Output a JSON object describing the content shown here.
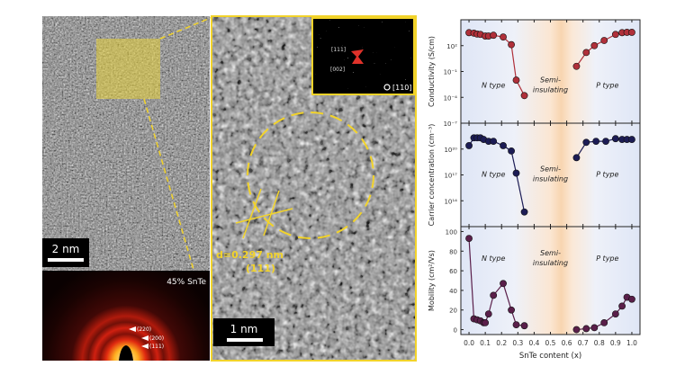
{
  "hrtem_left": {
    "scale_bar": "2 nm"
  },
  "diffraction": {
    "label": "45% SnTe",
    "rings": [
      "(220)",
      "(200)",
      "(111)"
    ]
  },
  "hrtem_middle": {
    "d_spacing": "d=0.297 nm",
    "plane": "(111)",
    "scale_bar": "1 nm"
  },
  "fft_inset": {
    "labels": [
      "[111]",
      "[002]"
    ],
    "zone_axis": "[110]"
  },
  "colors": {
    "annotation_yellow": "#f2d32a",
    "conductivity": "#b0303a",
    "carrier": "#1c1c55",
    "mobility": "#5a1f4a",
    "semi_band": "#f7c58f",
    "region_tint": "#dfe6f6"
  },
  "chart_data": [
    {
      "type": "line",
      "ylabel": "Conductivity (S/cm)",
      "yscale": "log",
      "ylim": [
        1e-07,
        100000.0
      ],
      "yticks": [
        {
          "v": 100.0,
          "label": "10²"
        },
        {
          "v": 0.1,
          "label": "10⁻¹"
        },
        {
          "v": 0.0001,
          "label": "10⁻⁴"
        },
        {
          "v": 1e-07,
          "label": "10⁻⁷"
        }
      ],
      "regions": [
        "N type",
        "Semi-",
        "insulating",
        "P type"
      ],
      "x": [
        0.0,
        0.03,
        0.05,
        0.07,
        0.1,
        0.12,
        0.15,
        0.21,
        0.26,
        0.29,
        0.34,
        0.66,
        0.72,
        0.77,
        0.83,
        0.9,
        0.94,
        0.97,
        1.0
      ],
      "segments": [
        [
          0,
          11
        ],
        [
          11,
          19
        ]
      ],
      "y": [
        3200,
        2800,
        2200,
        2000,
        1300,
        1300,
        1600,
        1000,
        130,
        0.01,
        0.00016,
        0.4,
        16,
        100,
        400,
        2000,
        3200,
        3500,
        3500
      ]
    },
    {
      "type": "line",
      "ylabel": "Carrier concentration (cm⁻³)",
      "yscale": "log",
      "ylim": [
        100000000000.0,
        1e+23
      ],
      "yticks": [
        {
          "v": 1e+20,
          "label": "10²⁰"
        },
        {
          "v": 1e+17,
          "label": "10¹⁷"
        },
        {
          "v": 100000000000000.0,
          "label": "10¹⁴"
        }
      ],
      "regions": [
        "N type",
        "Semi-",
        "insulating",
        "P type"
      ],
      "x": [
        0.0,
        0.03,
        0.05,
        0.07,
        0.09,
        0.12,
        0.15,
        0.21,
        0.26,
        0.29,
        0.34,
        0.66,
        0.72,
        0.78,
        0.84,
        0.9,
        0.94,
        0.97,
        1.0
      ],
      "segments": [
        [
          0,
          11
        ],
        [
          11,
          19
        ]
      ],
      "y": [
        2.5e+20,
        2e+21,
        2e+21,
        2e+21,
        1.3e+21,
        8e+20,
        8e+20,
        2.5e+20,
        6e+19,
        1.6e+17,
        5000000000000.0,
        1e+19,
        6e+20,
        8e+20,
        8e+20,
        1.6e+21,
        1.3e+21,
        1.3e+21,
        1.3e+21
      ]
    },
    {
      "type": "line",
      "ylabel": "Mobility (cm²/Vs)",
      "xlabel": "SnTe content (x)",
      "ylim": [
        -5,
        105
      ],
      "yticks": [
        {
          "v": 100,
          "label": "100"
        },
        {
          "v": 80,
          "label": "80"
        },
        {
          "v": 60,
          "label": "60"
        },
        {
          "v": 40,
          "label": "40"
        },
        {
          "v": 20,
          "label": "20"
        },
        {
          "v": 0,
          "label": "0"
        }
      ],
      "xticks": [
        "0.0",
        "0.1",
        "0.2",
        "0.3",
        "0.4",
        "0.5",
        "0.6",
        "0.7",
        "0.8",
        "0.9",
        "1.0"
      ],
      "xlim": [
        -0.05,
        1.05
      ],
      "regions": [
        "N type",
        "Semi-",
        "insulating",
        "P type"
      ],
      "x": [
        0.0,
        0.03,
        0.05,
        0.07,
        0.09,
        0.1,
        0.12,
        0.15,
        0.21,
        0.26,
        0.29,
        0.34,
        0.66,
        0.72,
        0.77,
        0.83,
        0.9,
        0.94,
        0.97,
        1.0
      ],
      "segments": [
        [
          0,
          12
        ],
        [
          12,
          20
        ]
      ],
      "y": [
        93,
        11,
        10,
        9,
        7,
        7,
        16,
        35,
        47,
        20,
        5,
        4,
        0,
        1,
        2,
        7,
        16,
        24,
        33,
        31
      ]
    }
  ]
}
